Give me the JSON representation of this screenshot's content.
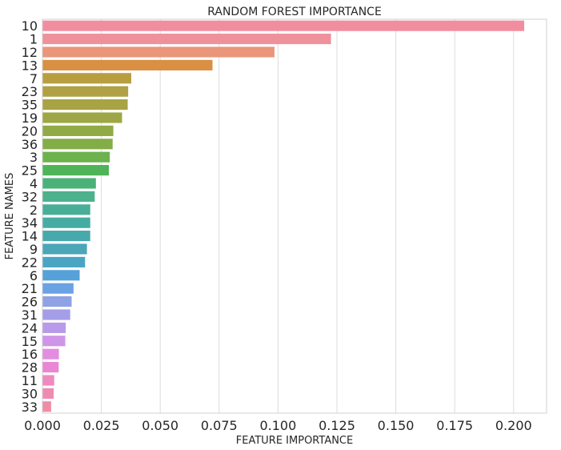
{
  "chart_data": {
    "type": "bar",
    "orientation": "horizontal",
    "title": "RANDOM FOREST IMPORTANCE",
    "xlabel": "FEATURE IMPORTANCE",
    "ylabel": "FEATURE NAMES",
    "xlim": [
      0,
      0.214
    ],
    "xticks": [
      "0.000",
      "0.025",
      "0.050",
      "0.075",
      "0.100",
      "0.125",
      "0.150",
      "0.175",
      "0.200"
    ],
    "grid": true,
    "categories": [
      "10",
      "1",
      "12",
      "13",
      "7",
      "23",
      "35",
      "19",
      "20",
      "36",
      "3",
      "25",
      "4",
      "32",
      "2",
      "34",
      "14",
      "9",
      "22",
      "6",
      "21",
      "26",
      "31",
      "24",
      "15",
      "16",
      "28",
      "11",
      "30",
      "33"
    ],
    "values": [
      0.2045,
      0.1225,
      0.0985,
      0.0722,
      0.0377,
      0.0364,
      0.0362,
      0.0338,
      0.0301,
      0.0298,
      0.0286,
      0.0282,
      0.0227,
      0.0222,
      0.0203,
      0.0203,
      0.0203,
      0.0189,
      0.0181,
      0.0158,
      0.0132,
      0.0124,
      0.0118,
      0.0099,
      0.0097,
      0.007,
      0.0069,
      0.005,
      0.0048,
      0.0037
    ],
    "colors": [
      "#f08ea0",
      "#ef919b",
      "#e9967a",
      "#d99042",
      "#b89e3f",
      "#b0a144",
      "#a8a344",
      "#9da745",
      "#90aa45",
      "#83ad46",
      "#6cb24d",
      "#4fb457",
      "#4ab179",
      "#4cb18c",
      "#48ae98",
      "#46aca3",
      "#48a9ac",
      "#4ba6b7",
      "#4aa5c3",
      "#56a1d8",
      "#6aa2e4",
      "#8fa2e6",
      "#a49ee9",
      "#b99aea",
      "#cf95e8",
      "#e38de2",
      "#ea86d5",
      "#ef89bf",
      "#ef8bb1",
      "#ef8da5"
    ]
  }
}
